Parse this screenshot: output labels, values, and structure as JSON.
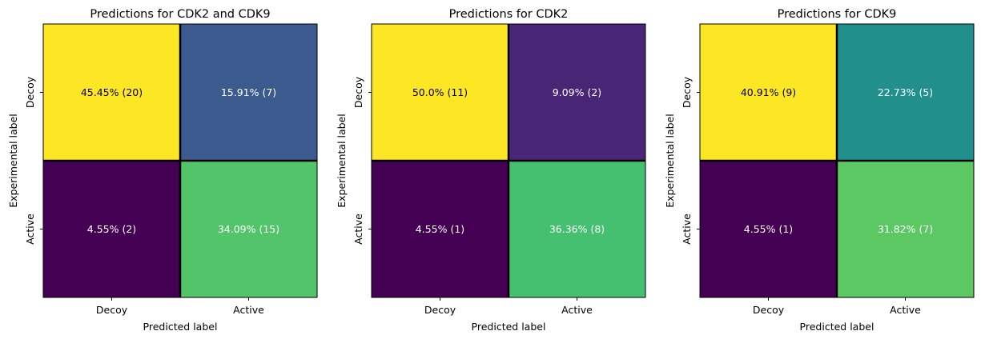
{
  "chart_data": [
    {
      "type": "heatmap",
      "title": "Predictions for CDK2 and CDK9",
      "xlabel": "Predicted label",
      "ylabel": "Experimental label",
      "x_categories": [
        "Decoy",
        "Active"
      ],
      "y_categories": [
        "Decoy",
        "Active"
      ],
      "counts": [
        [
          20,
          7
        ],
        [
          2,
          15
        ]
      ],
      "cell_labels": [
        [
          "45.45% (20)",
          "15.91% (7)"
        ],
        [
          "4.55% (2)",
          "34.09% (15)"
        ]
      ],
      "cell_colors": [
        [
          "#fde725",
          "#3b5a8d"
        ],
        [
          "#440154",
          "#52c469"
        ]
      ],
      "text_colors": [
        [
          "#000000",
          "#ffffff"
        ],
        [
          "#ffffff",
          "#ffffff"
        ]
      ]
    },
    {
      "type": "heatmap",
      "title": "Predictions for CDK2",
      "xlabel": "Predicted label",
      "ylabel": "Experimental label",
      "x_categories": [
        "Decoy",
        "Active"
      ],
      "y_categories": [
        "Decoy",
        "Active"
      ],
      "counts": [
        [
          11,
          2
        ],
        [
          1,
          8
        ]
      ],
      "cell_labels": [
        [
          "50.0% (11)",
          "9.09% (2)"
        ],
        [
          "4.55% (1)",
          "36.36% (8)"
        ]
      ],
      "cell_colors": [
        [
          "#fde725",
          "#482575"
        ],
        [
          "#440154",
          "#45bf70"
        ]
      ],
      "text_colors": [
        [
          "#000000",
          "#ffffff"
        ],
        [
          "#ffffff",
          "#ffffff"
        ]
      ]
    },
    {
      "type": "heatmap",
      "title": "Predictions for CDK9",
      "xlabel": "Predicted label",
      "ylabel": "Experimental label",
      "x_categories": [
        "Decoy",
        "Active"
      ],
      "y_categories": [
        "Decoy",
        "Active"
      ],
      "counts": [
        [
          9,
          5
        ],
        [
          1,
          7
        ]
      ],
      "cell_labels": [
        [
          "40.91% (9)",
          "22.73% (5)"
        ],
        [
          "4.55% (1)",
          "31.82% (7)"
        ]
      ],
      "cell_colors": [
        [
          "#fde725",
          "#21908d"
        ],
        [
          "#440154",
          "#5cc863"
        ]
      ],
      "text_colors": [
        [
          "#000000",
          "#ffffff"
        ],
        [
          "#ffffff",
          "#ffffff"
        ]
      ]
    }
  ]
}
